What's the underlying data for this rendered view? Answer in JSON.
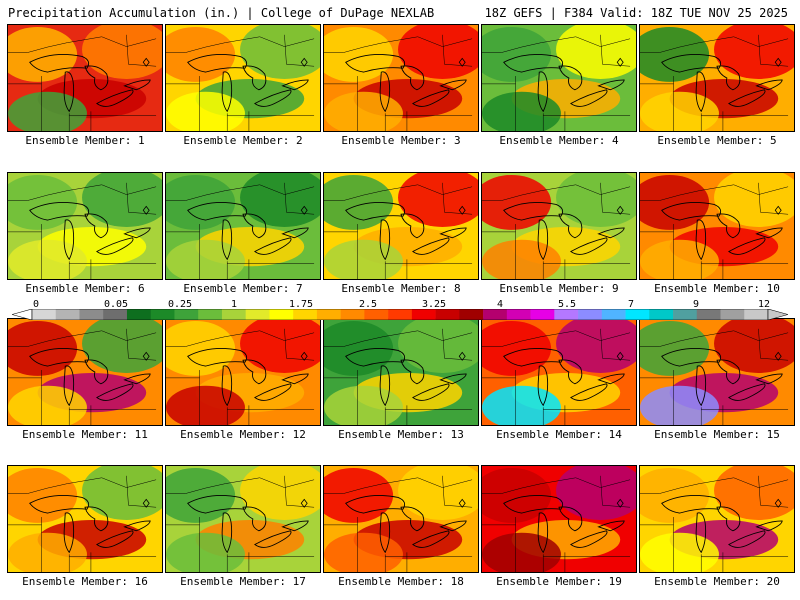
{
  "header": {
    "title": "Precipitation Accumulation (in.) | College of DuPage NEXLAB",
    "run_info": "18Z GEFS | F384 Valid: 18Z TUE NOV 25 2025"
  },
  "colorbar": {
    "labels": [
      "0",
      "0.05",
      "0.25",
      "1",
      "1.75",
      "2.5",
      "3.25",
      "4",
      "5.5",
      "7",
      "9",
      "12"
    ],
    "colors": [
      "#d6d6d6",
      "#b4b4b4",
      "#8c8c8c",
      "#6e6e6e",
      "#0e6f1f",
      "#1c8a28",
      "#3ea33a",
      "#6bbd3b",
      "#a8d33a",
      "#e2ea2a",
      "#ffff00",
      "#ffd500",
      "#ffae00",
      "#ff8a00",
      "#ff6000",
      "#ff3a00",
      "#f00000",
      "#c80000",
      "#a00000",
      "#b4006e",
      "#d200b4",
      "#e600e6",
      "#b478ff",
      "#8c8cff",
      "#50b4ff",
      "#00e6ff",
      "#00c8c8",
      "#50a0a0",
      "#787878",
      "#a0a0a0",
      "#c8c8c8"
    ]
  },
  "members": [
    {
      "label": "Ensemble Member: 1",
      "base": "#e62a12",
      "blobs": [
        "#ffb400",
        "#ff8000",
        "#c80000",
        "#3ea33a"
      ]
    },
    {
      "label": "Ensemble Member: 2",
      "base": "#ffd500",
      "blobs": [
        "#ff8000",
        "#6bbd3b",
        "#3ea33a",
        "#ffff00"
      ]
    },
    {
      "label": "Ensemble Member: 3",
      "base": "#ff8a00",
      "blobs": [
        "#ffd500",
        "#f00000",
        "#c80000",
        "#ffae00"
      ]
    },
    {
      "label": "Ensemble Member: 4",
      "base": "#6bbd3b",
      "blobs": [
        "#3ea33a",
        "#ffff00",
        "#ffae00",
        "#1c8a28"
      ]
    },
    {
      "label": "Ensemble Member: 5",
      "base": "#ffae00",
      "blobs": [
        "#1c8a28",
        "#f00000",
        "#c80000",
        "#ffd500"
      ]
    },
    {
      "label": "Ensemble Member: 6",
      "base": "#a8d33a",
      "blobs": [
        "#6bbd3b",
        "#3ea33a",
        "#ffff00",
        "#e2ea2a"
      ]
    },
    {
      "label": "Ensemble Member: 7",
      "base": "#6bbd3b",
      "blobs": [
        "#3ea33a",
        "#1c8a28",
        "#ffd500",
        "#a8d33a"
      ]
    },
    {
      "label": "Ensemble Member: 8",
      "base": "#ffd500",
      "blobs": [
        "#3ea33a",
        "#f00000",
        "#ffae00",
        "#a8d33a"
      ]
    },
    {
      "label": "Ensemble Member: 9",
      "base": "#a8d33a",
      "blobs": [
        "#f00000",
        "#6bbd3b",
        "#ffd500",
        "#ff8000"
      ]
    },
    {
      "label": "Ensemble Member: 10",
      "base": "#ff8a00",
      "blobs": [
        "#c80000",
        "#ffd500",
        "#f00000",
        "#ffae00"
      ]
    },
    {
      "label": "Ensemble Member: 11",
      "base": "#ff8a00",
      "blobs": [
        "#c80000",
        "#3ea33a",
        "#b4006e",
        "#ffd500"
      ]
    },
    {
      "label": "Ensemble Member: 12",
      "base": "#ff8a00",
      "blobs": [
        "#ffd500",
        "#f00000",
        "#ffae00",
        "#c80000"
      ]
    },
    {
      "label": "Ensemble Member: 13",
      "base": "#3ea33a",
      "blobs": [
        "#1c8a28",
        "#6bbd3b",
        "#ffd500",
        "#a8d33a"
      ]
    },
    {
      "label": "Ensemble Member: 14",
      "base": "#ff6000",
      "blobs": [
        "#f00000",
        "#b4006e",
        "#ffd500",
        "#00e6ff"
      ]
    },
    {
      "label": "Ensemble Member: 15",
      "base": "#ff8a00",
      "blobs": [
        "#3ea33a",
        "#c80000",
        "#b4006e",
        "#8c8cff"
      ]
    },
    {
      "label": "Ensemble Member: 16",
      "base": "#ffd500",
      "blobs": [
        "#ff8000",
        "#6bbd3b",
        "#c80000",
        "#ffae00"
      ]
    },
    {
      "label": "Ensemble Member: 17",
      "base": "#a8d33a",
      "blobs": [
        "#3ea33a",
        "#ffd500",
        "#ff8000",
        "#6bbd3b"
      ]
    },
    {
      "label": "Ensemble Member: 18",
      "base": "#ffae00",
      "blobs": [
        "#f00000",
        "#ffd500",
        "#c80000",
        "#ff6000"
      ]
    },
    {
      "label": "Ensemble Member: 19",
      "base": "#f00000",
      "blobs": [
        "#c80000",
        "#b4006e",
        "#ffae00",
        "#a00000"
      ]
    },
    {
      "label": "Ensemble Member: 20",
      "base": "#ffd500",
      "blobs": [
        "#ffae00",
        "#ff6000",
        "#b4006e",
        "#ffff00"
      ]
    }
  ]
}
